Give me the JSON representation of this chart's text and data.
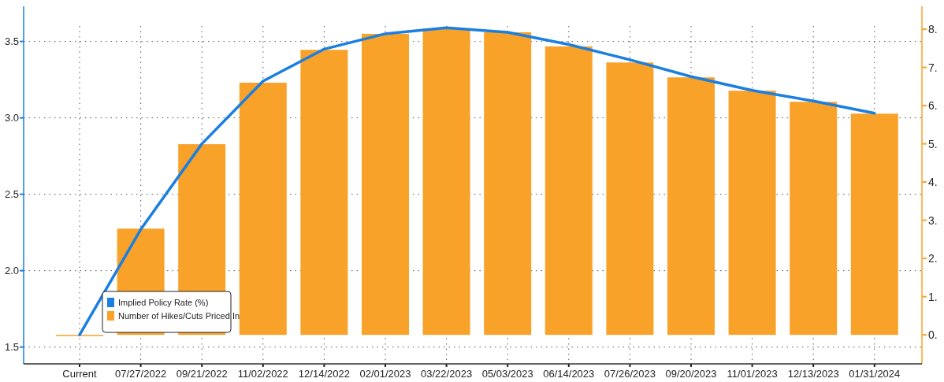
{
  "chart_data": {
    "type": "bar",
    "categories": [
      "Current",
      "07/27/2022",
      "09/21/2022",
      "11/02/2022",
      "12/14/2022",
      "02/01/2023",
      "03/22/2023",
      "05/03/2023",
      "06/14/2023",
      "07/26/2023",
      "09/20/2023",
      "11/01/2023",
      "12/13/2023",
      "01/31/2024"
    ],
    "series": [
      {
        "name": "Implied Policy Rate (%)",
        "type": "line",
        "color": "#1a7fe0",
        "values": [
          1.58,
          2.27,
          2.83,
          3.24,
          3.45,
          3.55,
          3.59,
          3.56,
          3.48,
          3.38,
          3.27,
          3.18,
          3.11,
          3.03
        ]
      },
      {
        "name": "Number of Hikes/Cuts Priced In",
        "axis": "y2",
        "color": "#f9a22a",
        "values": [
          0,
          2.78,
          4.99,
          6.6,
          7.46,
          7.88,
          8.02,
          7.92,
          7.55,
          7.13,
          6.74,
          6.39,
          6.1,
          5.79
        ]
      }
    ],
    "ylim": [
      1.39,
      3.73
    ],
    "yticks": [
      {
        "value": 1.5,
        "label": "1.5"
      },
      {
        "value": 2,
        "label": "2.0"
      },
      {
        "value": 2.5,
        "label": "2.5"
      },
      {
        "value": 3,
        "label": "3.0"
      },
      {
        "value": 3.5,
        "label": "3.5"
      }
    ],
    "y2lim": [
      -0.76,
      8.6
    ],
    "y2ticks": [
      {
        "value": 0,
        "label": "0."
      },
      {
        "value": 1,
        "label": "1."
      },
      {
        "value": 2,
        "label": "2."
      },
      {
        "value": 3,
        "label": "3."
      },
      {
        "value": 4,
        "label": "4."
      },
      {
        "value": 5,
        "label": "5."
      },
      {
        "value": 6,
        "label": "6."
      },
      {
        "value": 7,
        "label": "7."
      },
      {
        "value": 8,
        "label": "8."
      }
    ],
    "grid": true,
    "legend": "bottom left",
    "marker": "none"
  }
}
